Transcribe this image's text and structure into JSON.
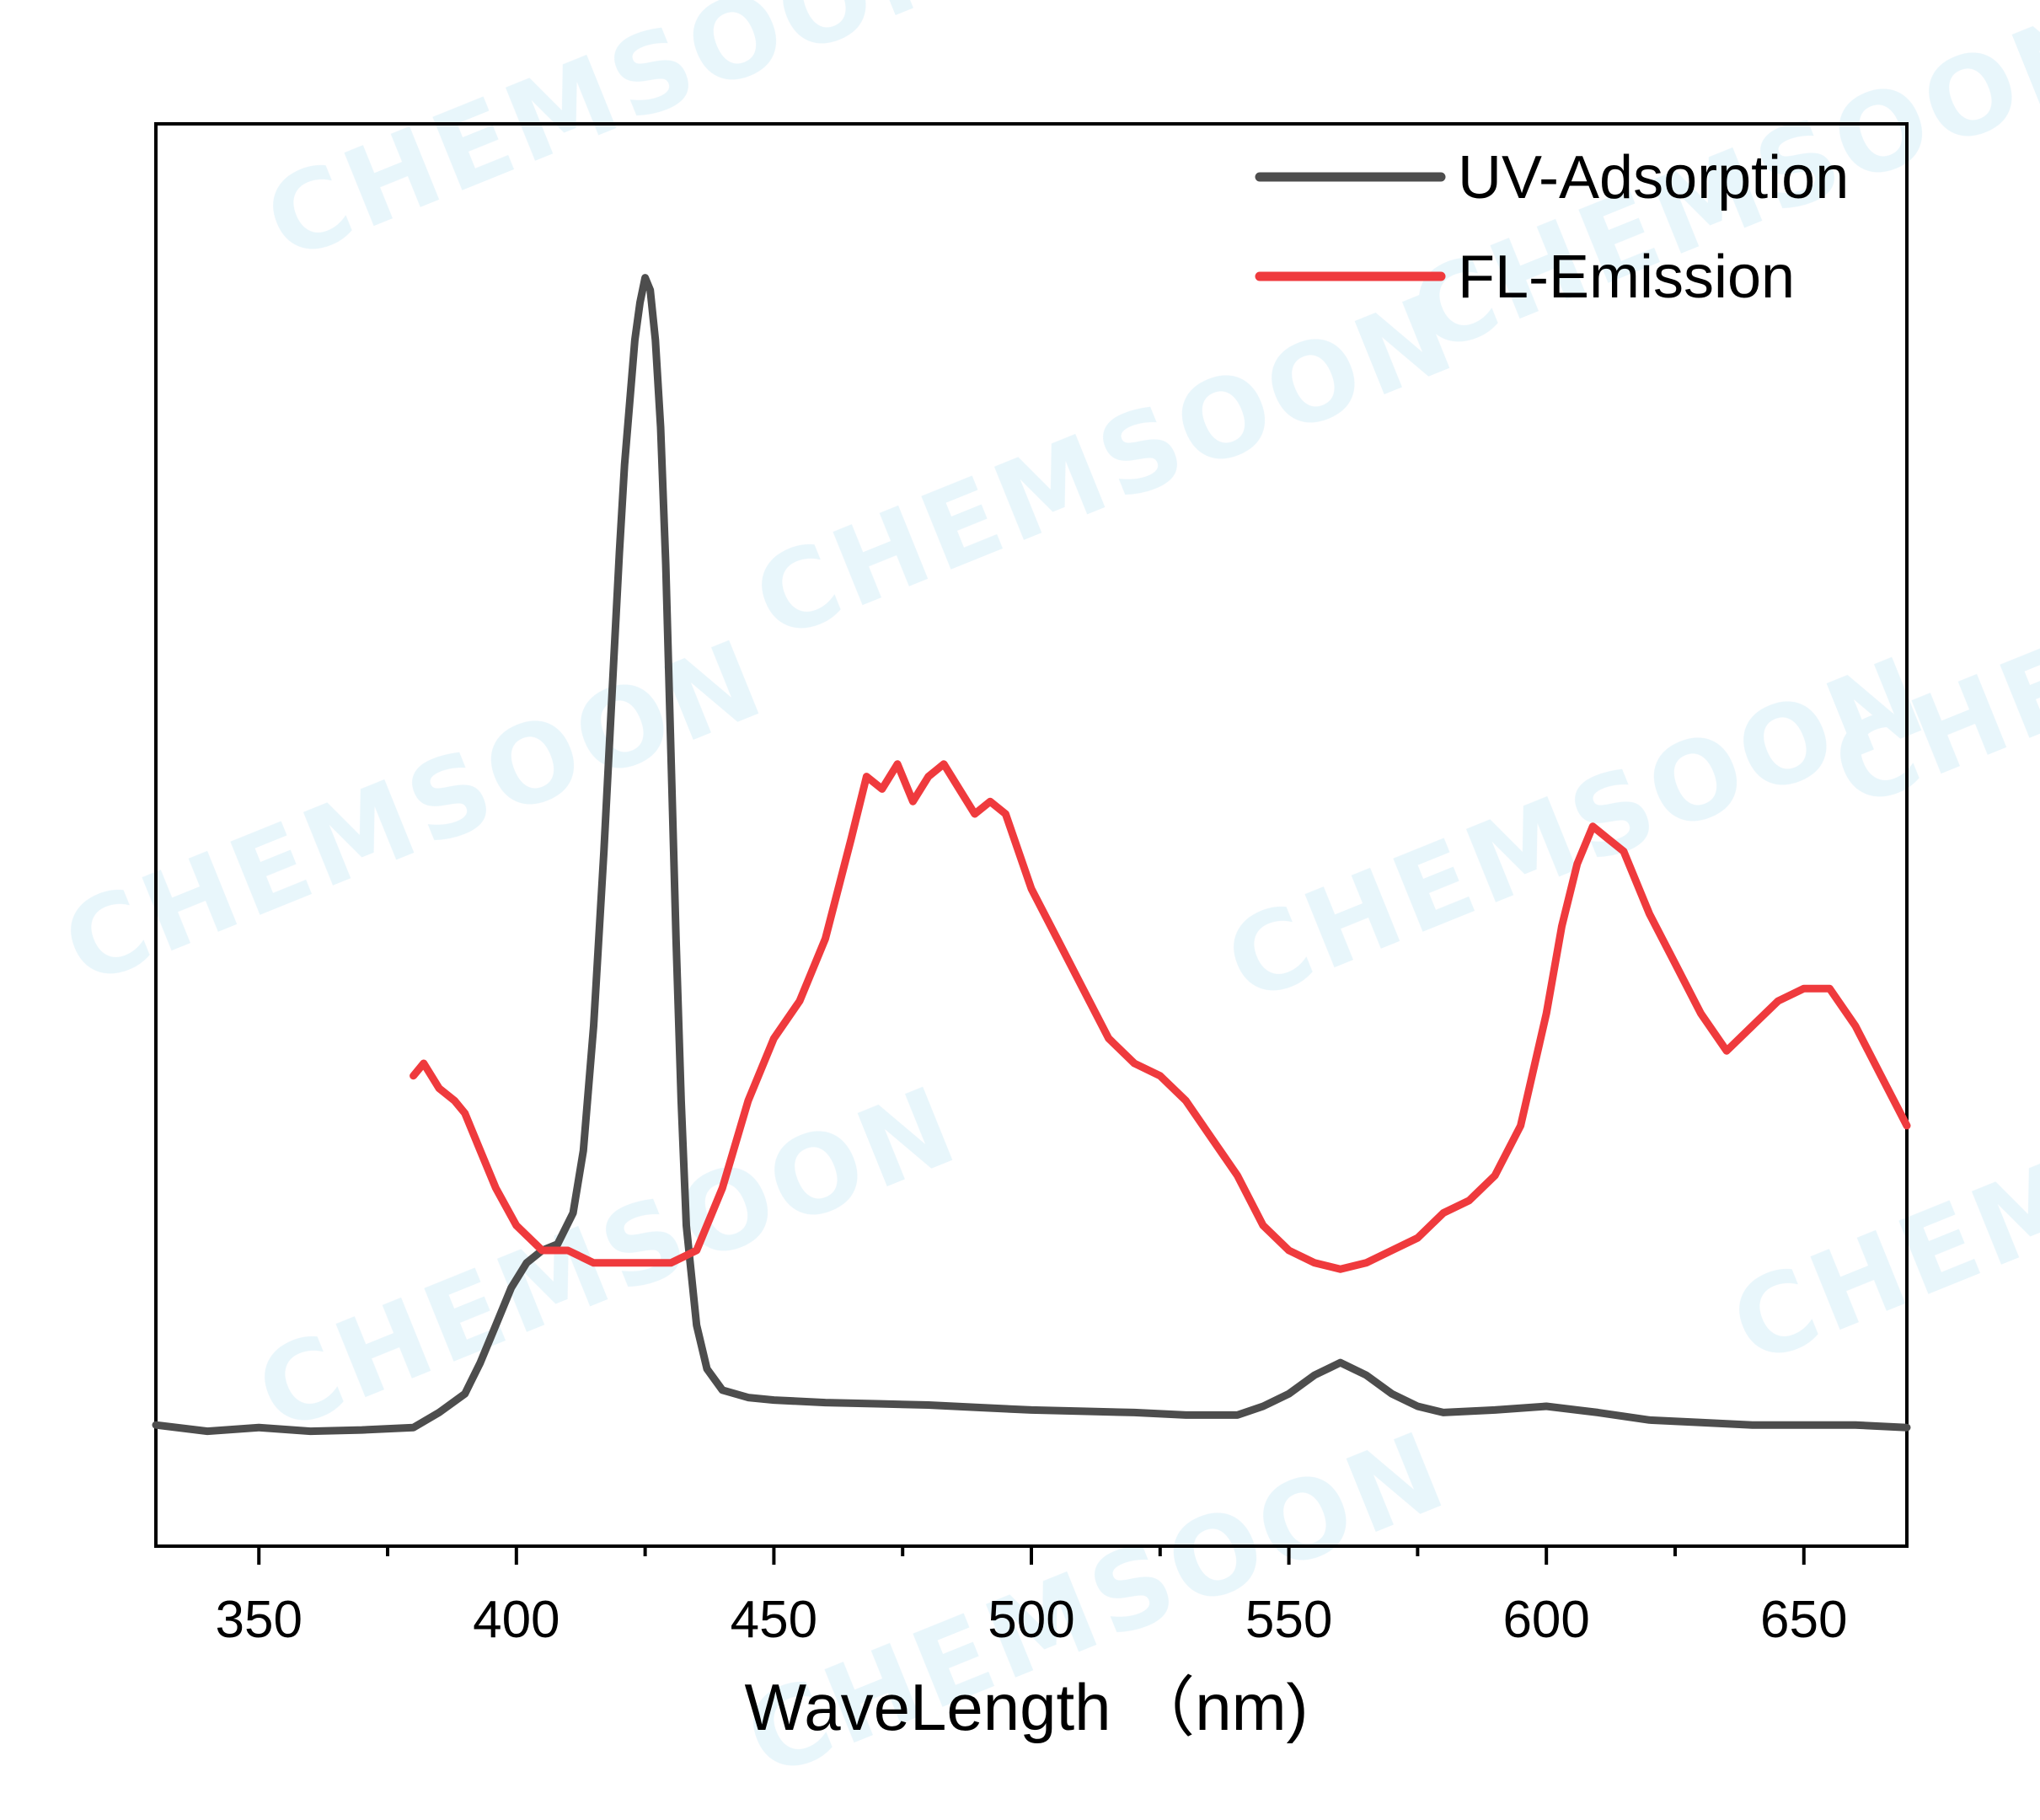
{
  "chart_data": {
    "type": "line",
    "title": "",
    "xlabel": "WaveLength （nm)",
    "ylabel": "",
    "xlim": [
      330,
      670
    ],
    "ylim": [
      0,
      1
    ],
    "x_ticks": [
      350,
      400,
      450,
      500,
      550,
      600,
      650
    ],
    "x_minor_ticks": [
      375,
      425,
      475,
      525,
      575,
      625
    ],
    "y_ticks_shown": false,
    "grid": false,
    "legend": "top-right",
    "watermark": "CHEMSOON",
    "series": [
      {
        "name": "UV-Adsorption",
        "color": "#4d4d4d",
        "x": [
          330,
          340,
          350,
          360,
          370,
          380,
          385,
          390,
          393,
          396,
          399,
          402,
          405,
          408,
          411,
          413,
          415,
          417,
          419,
          420,
          421,
          422,
          423,
          424,
          425,
          426,
          427,
          428,
          429,
          430,
          431,
          432,
          433,
          435,
          437,
          440,
          445,
          450,
          460,
          470,
          480,
          490,
          500,
          510,
          520,
          530,
          540,
          545,
          550,
          555,
          560,
          565,
          570,
          575,
          580,
          590,
          600,
          610,
          620,
          630,
          640,
          650,
          660,
          670
        ],
        "y": [
          0.06,
          0.055,
          0.058,
          0.055,
          0.056,
          0.058,
          0.07,
          0.085,
          0.11,
          0.14,
          0.17,
          0.19,
          0.2,
          0.205,
          0.23,
          0.28,
          0.38,
          0.52,
          0.68,
          0.76,
          0.83,
          0.88,
          0.93,
          0.96,
          0.98,
          0.97,
          0.93,
          0.86,
          0.75,
          0.6,
          0.45,
          0.32,
          0.22,
          0.14,
          0.105,
          0.088,
          0.082,
          0.08,
          0.078,
          0.077,
          0.076,
          0.074,
          0.072,
          0.071,
          0.07,
          0.068,
          0.068,
          0.075,
          0.085,
          0.1,
          0.11,
          0.1,
          0.085,
          0.075,
          0.07,
          0.072,
          0.075,
          0.07,
          0.064,
          0.062,
          0.06,
          0.06,
          0.06,
          0.058
        ]
      },
      {
        "name": "FL-Emission",
        "color": "#ef3a3d",
        "x": [
          380,
          382,
          385,
          388,
          390,
          393,
          396,
          400,
          405,
          410,
          415,
          420,
          425,
          430,
          435,
          440,
          445,
          450,
          455,
          460,
          465,
          468,
          471,
          474,
          477,
          480,
          483,
          486,
          489,
          492,
          495,
          500,
          505,
          510,
          515,
          520,
          525,
          530,
          535,
          540,
          545,
          550,
          555,
          560,
          565,
          570,
          575,
          580,
          585,
          590,
          595,
          600,
          603,
          606,
          609,
          612,
          615,
          620,
          625,
          630,
          635,
          640,
          645,
          650,
          655,
          660,
          665,
          670
        ],
        "y": [
          0.34,
          0.35,
          0.33,
          0.32,
          0.31,
          0.28,
          0.25,
          0.22,
          0.2,
          0.2,
          0.19,
          0.19,
          0.19,
          0.19,
          0.2,
          0.25,
          0.32,
          0.37,
          0.4,
          0.45,
          0.53,
          0.58,
          0.57,
          0.59,
          0.56,
          0.58,
          0.59,
          0.57,
          0.55,
          0.56,
          0.55,
          0.49,
          0.45,
          0.41,
          0.37,
          0.35,
          0.34,
          0.32,
          0.29,
          0.26,
          0.22,
          0.2,
          0.19,
          0.185,
          0.19,
          0.2,
          0.21,
          0.23,
          0.24,
          0.26,
          0.3,
          0.39,
          0.46,
          0.51,
          0.54,
          0.53,
          0.52,
          0.47,
          0.43,
          0.39,
          0.36,
          0.38,
          0.4,
          0.41,
          0.41,
          0.38,
          0.34,
          0.3
        ]
      }
    ]
  }
}
